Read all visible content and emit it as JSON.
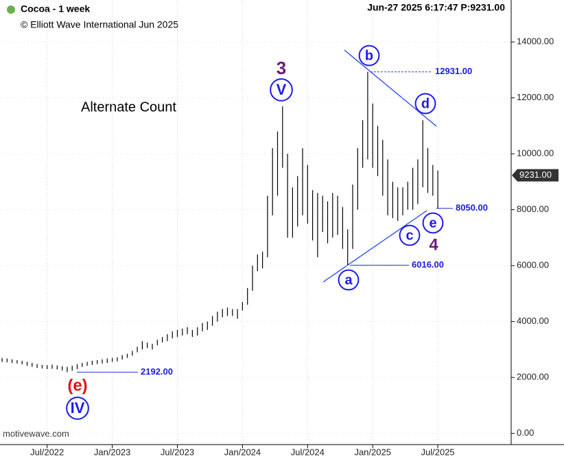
{
  "chart_data": {
    "type": "hilo",
    "title": "Cocoa - 1 week",
    "subtitle": "© Elliott Wave International Jun 2025",
    "header_right": "Jun-27 2025  6:17:47  P:9231.00",
    "annotation": "Alternate Count",
    "source": "motivewave.com",
    "color": "#000000",
    "categories": [
      null,
      null,
      null,
      null,
      null,
      null,
      null,
      null,
      null,
      "Jul/2022",
      null,
      null,
      null,
      null,
      null,
      null,
      null,
      null,
      null,
      null,
      null,
      null,
      "Jan/2023",
      null,
      null,
      null,
      null,
      null,
      null,
      null,
      null,
      null,
      null,
      null,
      null,
      "Jul/2023",
      null,
      null,
      null,
      null,
      null,
      null,
      null,
      null,
      null,
      null,
      null,
      null,
      "Jan/2024",
      null,
      null,
      null,
      null,
      null,
      null,
      null,
      null,
      null,
      null,
      null,
      null,
      "Jul/2024",
      null,
      null,
      null,
      null,
      null,
      null,
      null,
      null,
      null,
      null,
      null,
      null,
      "Jan/2025",
      null,
      null,
      null,
      null,
      null,
      null,
      null,
      null,
      null,
      null,
      null,
      null,
      "Jul/2025"
    ],
    "high": [
      2700,
      2680,
      2650,
      2620,
      2600,
      2560,
      2520,
      2480,
      2450,
      2440,
      2460,
      2430,
      2400,
      2380,
      2420,
      2480,
      2520,
      2560,
      2600,
      2620,
      2650,
      2680,
      2700,
      2720,
      2800,
      2850,
      2950,
      3100,
      3300,
      3250,
      3200,
      3350,
      3450,
      3550,
      3650,
      3700,
      3750,
      3800,
      3700,
      3800,
      3950,
      4000,
      4200,
      4350,
      4450,
      4500,
      4450,
      4450,
      4700,
      5200,
      6000,
      6400,
      6500,
      8500,
      10200,
      10800,
      11700,
      10000,
      8800,
      9200,
      10200,
      9600,
      8700,
      8600,
      8500,
      8300,
      8600,
      8500,
      8100,
      7300,
      8900,
      10200,
      11200,
      12931,
      11800,
      11000,
      10500,
      9800,
      9000,
      8800,
      8800,
      9000,
      9500,
      9800,
      11200,
      10200,
      9600,
      9400
    ],
    "low": [
      2550,
      2540,
      2520,
      2500,
      2470,
      2420,
      2380,
      2340,
      2320,
      2300,
      2310,
      2290,
      2250,
      2192,
      2240,
      2300,
      2380,
      2420,
      2450,
      2480,
      2500,
      2520,
      2560,
      2580,
      2640,
      2700,
      2780,
      2900,
      3000,
      3050,
      3000,
      3150,
      3250,
      3300,
      3400,
      3450,
      3500,
      3550,
      3450,
      3500,
      3650,
      3700,
      3850,
      4000,
      4150,
      4200,
      4200,
      4100,
      4400,
      4600,
      5100,
      5800,
      5900,
      6300,
      7800,
      8500,
      9500,
      7000,
      7000,
      7400,
      7800,
      7500,
      6900,
      6300,
      7200,
      6800,
      7000,
      7100,
      6600,
      6016,
      6600,
      8000,
      9500,
      9800,
      9500,
      9200,
      8500,
      7800,
      7700,
      7600,
      7800,
      8000,
      8000,
      8200,
      8800,
      8600,
      8500,
      8050
    ],
    "ylim": [
      -400,
      15500
    ],
    "yticks": [
      {
        "value": 0,
        "label": "0.00"
      },
      {
        "value": 2000,
        "label": "2000.00"
      },
      {
        "value": 4000,
        "label": "4000.00"
      },
      {
        "value": 6000,
        "label": "6000.00"
      },
      {
        "value": 8000,
        "label": "8000.00"
      },
      {
        "value": 10000,
        "label": "10000.00"
      },
      {
        "value": 12000,
        "label": "12000.00"
      },
      {
        "value": 14000,
        "label": "14000.00"
      }
    ],
    "levels": [
      {
        "value": 12931,
        "label": "12931.00"
      },
      {
        "value": 8050,
        "label": "8050.00"
      },
      {
        "value": 6016,
        "label": "6016.00"
      },
      {
        "value": 2192,
        "label": "2192.00"
      }
    ],
    "last_price": {
      "value": 9231,
      "label": "9231.00"
    },
    "wave_labels": [
      "3",
      "V",
      "b",
      "d",
      "e",
      "c",
      "4",
      "a",
      "(e)",
      "IV"
    ],
    "grid": true
  }
}
